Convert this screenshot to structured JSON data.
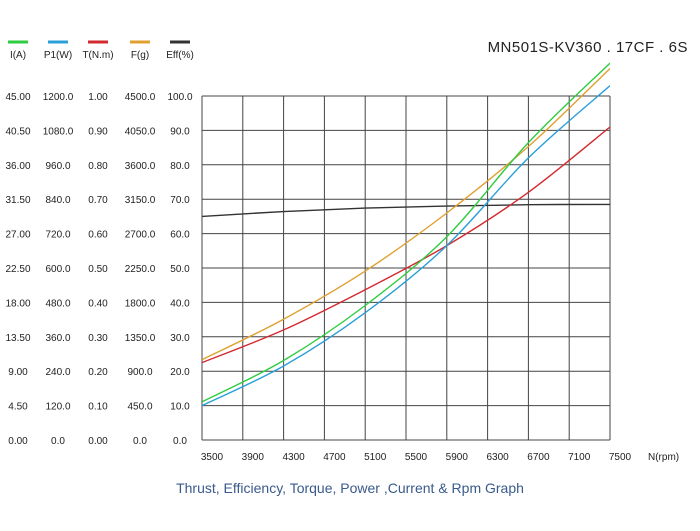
{
  "header": {
    "model": "MN501S-KV360 . 17CF . 6S"
  },
  "caption": "Thrust, Efficiency, Torque, Power ,Current & Rpm Graph",
  "colors": {
    "current": "#2ecc40",
    "power": "#2a9fd8",
    "torque": "#d3292f",
    "thrust": "#e0a030",
    "efficiency": "#333333",
    "grid": "#444444"
  },
  "chart_data": {
    "type": "line",
    "xlabel": "N(rpm)",
    "x_ticks": [
      "3500",
      "3900",
      "4300",
      "4700",
      "5100",
      "5500",
      "5900",
      "6300",
      "6700",
      "7100",
      "7500"
    ],
    "xlim": [
      3500,
      7500
    ],
    "grid": true,
    "legend_position": "top-left",
    "axes": [
      {
        "key": "current",
        "label": "I(A)",
        "min": 0,
        "max": 45,
        "ticks": [
          "0.00",
          "4.50",
          "9.00",
          "13.50",
          "18.00",
          "22.50",
          "27.00",
          "31.50",
          "36.00",
          "40.50",
          "45.00"
        ]
      },
      {
        "key": "power",
        "label": "P1(W)",
        "min": 0,
        "max": 1200,
        "ticks": [
          "0.0",
          "120.0",
          "240.0",
          "360.0",
          "480.0",
          "600.0",
          "720.0",
          "840.0",
          "960.0",
          "1080.0",
          "1200.0"
        ]
      },
      {
        "key": "torque",
        "label": "T(N.m)",
        "min": 0,
        "max": 1,
        "ticks": [
          "0.00",
          "0.10",
          "0.20",
          "0.30",
          "0.40",
          "0.50",
          "0.60",
          "0.70",
          "0.80",
          "0.90",
          "1.00"
        ]
      },
      {
        "key": "thrust",
        "label": "F(g)",
        "min": 0,
        "max": 4500,
        "ticks": [
          "0.0",
          "450.0",
          "900.0",
          "1350.0",
          "1800.0",
          "2250.0",
          "2700.0",
          "3150.0",
          "3600.0",
          "4050.0",
          "4500.0"
        ]
      },
      {
        "key": "efficiency",
        "label": "Eff(%)",
        "min": 0,
        "max": 100,
        "ticks": [
          "0.0",
          "10.0",
          "20.0",
          "30.0",
          "40.0",
          "50.0",
          "60.0",
          "70.0",
          "80.0",
          "90.0",
          "100.0"
        ]
      }
    ],
    "series": [
      {
        "name": "I(A)",
        "key": "current",
        "x": [
          3500,
          4300,
          5100,
          5900,
          6700,
          7500
        ],
        "y": [
          5.0,
          10.4,
          17.6,
          26.6,
          38.9,
          49.3
        ]
      },
      {
        "name": "P1(W)",
        "key": "power",
        "x": [
          3500,
          4300,
          5100,
          5900,
          6700,
          7500
        ],
        "y": [
          120,
          258,
          444,
          678,
          984,
          1236
        ]
      },
      {
        "name": "T(N.m)",
        "key": "torque",
        "x": [
          3500,
          4300,
          5100,
          5900,
          6700,
          7500
        ],
        "y": [
          0.225,
          0.32,
          0.437,
          0.565,
          0.72,
          0.91
        ]
      },
      {
        "name": "F(g)",
        "key": "thrust",
        "x": [
          3500,
          4300,
          5100,
          5900,
          6700,
          7500
        ],
        "y": [
          1050,
          1580,
          2210,
          2970,
          3840,
          4860
        ]
      },
      {
        "name": "Eff(%)",
        "key": "efficiency",
        "x": [
          3500,
          4300,
          5100,
          5900,
          6700,
          7500
        ],
        "y": [
          65.0,
          66.4,
          67.4,
          68.0,
          68.4,
          68.5
        ]
      }
    ]
  }
}
